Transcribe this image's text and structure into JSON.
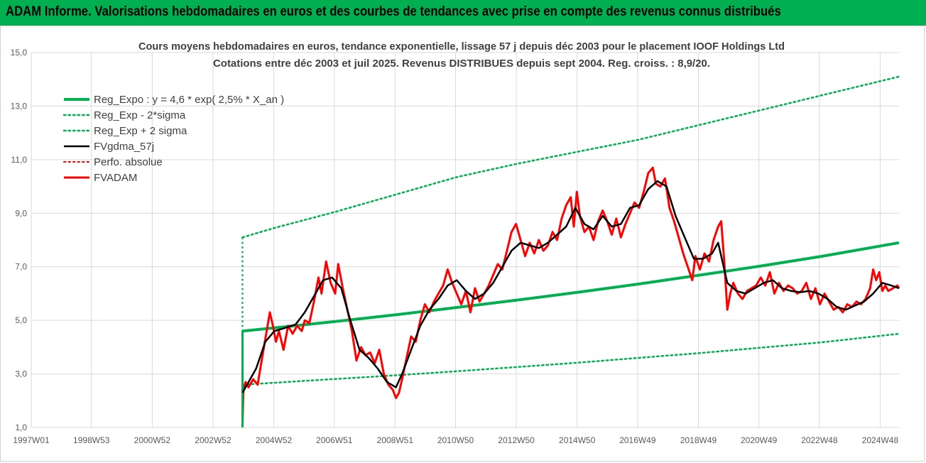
{
  "banner": {
    "title": "ADAM Informe. Valorisations hebdomadaires en euros et des courbes de tendances avec prise en compte des revenus connus distribués"
  },
  "chart_data": {
    "type": "line",
    "title": "Cours moyens hebdomadaires en euros, tendance exponentielle, lissage 57 j depuis déc 2003 pour le placement IOOF Holdings Ltd",
    "subtitle": "Cotations entre déc 2003 et juil 2025. Revenus DISTRIBUES depuis sept 2004. Reg. croiss. : 8,9/20.",
    "xlabel": "",
    "ylabel": "",
    "ylim": [
      1.0,
      15.0
    ],
    "xlim": [
      1997.0,
      2025.55
    ],
    "grid": true,
    "legend_position": "top-left",
    "y_ticks": [
      "1,0",
      "3,0",
      "5,0",
      "7,0",
      "9,0",
      "11,0",
      "13,0",
      "15,0"
    ],
    "x_ticks": [
      {
        "label": "1997W01",
        "x": 1997.0
      },
      {
        "label": "1998W53",
        "x": 1998.98
      },
      {
        "label": "2000W52",
        "x": 2000.98
      },
      {
        "label": "2002W52",
        "x": 2002.98
      },
      {
        "label": "2004W52",
        "x": 2004.98
      },
      {
        "label": "2006W51",
        "x": 2006.97
      },
      {
        "label": "2008W51",
        "x": 2008.97
      },
      {
        "label": "2010W50",
        "x": 2010.96
      },
      {
        "label": "2012W50",
        "x": 2012.96
      },
      {
        "label": "2014W50",
        "x": 2014.96
      },
      {
        "label": "2016W49",
        "x": 2016.95
      },
      {
        "label": "2018W49",
        "x": 2018.95
      },
      {
        "label": "2020W49",
        "x": 2020.94
      },
      {
        "label": "2022W48",
        "x": 2022.93
      },
      {
        "label": "2024W48",
        "x": 2024.93
      }
    ],
    "series": [
      {
        "name": "Reg_Expo : y = 4,6 * exp( 2,5% *  X_an )",
        "color": "#00b050",
        "dash": "solid",
        "width": 4,
        "x": [
          2003.95,
          2005,
          2007,
          2009,
          2011,
          2013,
          2015,
          2017,
          2019,
          2021,
          2023,
          2025.55
        ],
        "values": [
          4.6,
          4.72,
          4.96,
          5.21,
          5.48,
          5.76,
          6.05,
          6.36,
          6.69,
          7.03,
          7.39,
          7.9
        ]
      },
      {
        "name": "Reg_Exp - 2*sigma",
        "color": "#00b050",
        "dash": "dotted",
        "width": 2.5,
        "x": [
          2003.95,
          2005,
          2007,
          2009,
          2011,
          2013,
          2015,
          2017,
          2019,
          2021,
          2023,
          2025.55
        ],
        "values": [
          2.6,
          2.67,
          2.81,
          2.95,
          3.1,
          3.26,
          3.42,
          3.6,
          3.78,
          3.98,
          4.18,
          4.5
        ]
      },
      {
        "name": "Reg_Exp + 2 sigma",
        "color": "#00b050",
        "dash": "dotted",
        "width": 2.5,
        "x": [
          2003.95,
          2005,
          2007,
          2009,
          2011,
          2013,
          2015,
          2017,
          2019,
          2021,
          2023,
          2025.55
        ],
        "values": [
          8.1,
          8.45,
          9.05,
          9.7,
          10.35,
          10.85,
          11.3,
          11.75,
          12.3,
          12.85,
          13.4,
          14.1
        ]
      },
      {
        "name": "FVgdma_57j",
        "color": "#000000",
        "dash": "solid",
        "width": 2.5,
        "x": [
          2003.95,
          2004.1,
          2004.4,
          2004.7,
          2005.0,
          2005.3,
          2005.7,
          2006.0,
          2006.3,
          2006.6,
          2006.9,
          2007.2,
          2007.5,
          2007.8,
          2008.1,
          2008.4,
          2008.7,
          2009.0,
          2009.2,
          2009.5,
          2009.8,
          2010.1,
          2010.4,
          2010.7,
          2011.0,
          2011.3,
          2011.6,
          2011.9,
          2012.2,
          2012.5,
          2012.8,
          2013.1,
          2013.4,
          2013.7,
          2014.0,
          2014.3,
          2014.6,
          2014.9,
          2015.2,
          2015.5,
          2015.8,
          2016.1,
          2016.4,
          2016.7,
          2017.0,
          2017.3,
          2017.6,
          2017.9,
          2018.2,
          2018.5,
          2018.8,
          2019.1,
          2019.4,
          2019.6,
          2019.9,
          2020.2,
          2020.5,
          2020.8,
          2021.1,
          2021.4,
          2021.7,
          2022.0,
          2022.3,
          2022.6,
          2022.9,
          2023.2,
          2023.5,
          2023.8,
          2024.1,
          2024.4,
          2024.7,
          2025.0,
          2025.3,
          2025.55
        ],
        "values": [
          2.3,
          2.6,
          3.2,
          4.2,
          4.6,
          4.7,
          4.85,
          5.3,
          5.9,
          6.5,
          6.6,
          6.2,
          5.0,
          3.9,
          3.6,
          3.2,
          2.7,
          2.5,
          3.0,
          3.9,
          4.8,
          5.4,
          5.8,
          6.3,
          6.5,
          6.1,
          5.8,
          6.0,
          6.4,
          7.0,
          7.6,
          7.9,
          7.8,
          7.7,
          7.9,
          8.2,
          8.5,
          9.2,
          8.6,
          8.4,
          8.9,
          8.5,
          8.6,
          9.2,
          9.3,
          9.9,
          10.2,
          10.0,
          8.9,
          8.1,
          7.3,
          7.3,
          7.5,
          7.9,
          6.4,
          6.1,
          6.0,
          6.2,
          6.4,
          6.5,
          6.2,
          6.1,
          6.05,
          6.1,
          6.0,
          5.8,
          5.5,
          5.4,
          5.55,
          5.7,
          6.0,
          6.4,
          6.3,
          6.2
        ]
      },
      {
        "name": "Perfo. absolue",
        "color": "#ff0000",
        "dash": "dotted",
        "width": 2,
        "x": [],
        "values": []
      },
      {
        "name": "FVADAM",
        "color": "#ff0000",
        "dash": "solid",
        "width": 3,
        "x": [
          2003.95,
          2003.98,
          2004.05,
          2004.15,
          2004.3,
          2004.45,
          2004.55,
          2004.7,
          2004.85,
          2004.95,
          2005.05,
          2005.15,
          2005.3,
          2005.45,
          2005.6,
          2005.75,
          2005.9,
          2006.0,
          2006.15,
          2006.3,
          2006.45,
          2006.55,
          2006.7,
          2006.85,
          2007.0,
          2007.1,
          2007.25,
          2007.4,
          2007.55,
          2007.7,
          2007.85,
          2008.0,
          2008.15,
          2008.3,
          2008.45,
          2008.6,
          2008.75,
          2008.9,
          2009.0,
          2009.1,
          2009.2,
          2009.35,
          2009.5,
          2009.65,
          2009.8,
          2009.95,
          2010.1,
          2010.25,
          2010.4,
          2010.55,
          2010.7,
          2010.85,
          2011.0,
          2011.15,
          2011.3,
          2011.45,
          2011.6,
          2011.75,
          2011.9,
          2012.05,
          2012.2,
          2012.35,
          2012.5,
          2012.65,
          2012.8,
          2012.95,
          2013.1,
          2013.25,
          2013.4,
          2013.55,
          2013.7,
          2013.85,
          2014.0,
          2014.15,
          2014.3,
          2014.45,
          2014.6,
          2014.75,
          2014.85,
          2014.95,
          2015.05,
          2015.2,
          2015.35,
          2015.5,
          2015.65,
          2015.8,
          2015.95,
          2016.1,
          2016.25,
          2016.4,
          2016.55,
          2016.7,
          2016.85,
          2017.0,
          2017.15,
          2017.3,
          2017.45,
          2017.55,
          2017.7,
          2017.85,
          2018.0,
          2018.15,
          2018.3,
          2018.45,
          2018.6,
          2018.75,
          2018.85,
          2019.0,
          2019.15,
          2019.3,
          2019.45,
          2019.6,
          2019.7,
          2019.8,
          2019.9,
          2020.0,
          2020.1,
          2020.25,
          2020.4,
          2020.55,
          2020.7,
          2020.85,
          2021.0,
          2021.15,
          2021.3,
          2021.45,
          2021.6,
          2021.75,
          2021.9,
          2022.05,
          2022.2,
          2022.35,
          2022.5,
          2022.65,
          2022.8,
          2022.95,
          2023.1,
          2023.25,
          2023.4,
          2023.55,
          2023.7,
          2023.85,
          2024.0,
          2024.15,
          2024.3,
          2024.45,
          2024.6,
          2024.7,
          2024.8,
          2024.9,
          2025.0,
          2025.1,
          2025.2,
          2025.35,
          2025.5,
          2025.55
        ],
        "values": [
          1.1,
          2.4,
          2.7,
          2.5,
          2.8,
          2.6,
          3.3,
          4.3,
          5.3,
          4.8,
          4.2,
          4.6,
          3.9,
          4.8,
          4.5,
          4.8,
          4.6,
          5.0,
          4.9,
          5.7,
          6.6,
          6.0,
          7.2,
          6.4,
          6.0,
          7.1,
          6.2,
          5.4,
          4.6,
          3.5,
          4.0,
          3.7,
          3.8,
          3.4,
          3.9,
          3.0,
          2.6,
          2.4,
          2.1,
          2.3,
          2.8,
          3.6,
          4.4,
          4.2,
          5.0,
          5.6,
          5.3,
          5.7,
          6.0,
          6.3,
          6.9,
          6.4,
          6.0,
          5.6,
          6.1,
          5.3,
          6.2,
          5.7,
          6.0,
          6.3,
          6.7,
          7.1,
          6.9,
          7.6,
          8.3,
          8.6,
          8.0,
          7.4,
          7.9,
          7.5,
          8.0,
          7.6,
          7.8,
          8.3,
          8.0,
          8.8,
          9.3,
          9.6,
          8.5,
          9.8,
          8.9,
          8.3,
          8.5,
          8.0,
          8.7,
          9.1,
          8.7,
          8.2,
          8.8,
          8.1,
          8.6,
          9.0,
          9.4,
          9.2,
          9.8,
          10.5,
          10.7,
          10.1,
          10.0,
          10.3,
          9.2,
          8.7,
          8.1,
          7.5,
          7.0,
          6.5,
          7.4,
          6.9,
          7.5,
          7.2,
          8.0,
          8.5,
          8.7,
          7.2,
          5.4,
          6.0,
          6.4,
          6.0,
          5.8,
          6.1,
          6.2,
          6.3,
          6.6,
          6.3,
          6.8,
          6.0,
          6.4,
          6.1,
          6.3,
          6.2,
          6.0,
          6.1,
          6.4,
          5.8,
          6.2,
          5.6,
          6.0,
          5.7,
          5.4,
          5.5,
          5.3,
          5.6,
          5.5,
          5.7,
          5.6,
          5.8,
          6.2,
          6.9,
          6.5,
          6.8,
          6.1,
          6.3,
          6.1,
          6.2,
          6.3,
          6.2
        ]
      }
    ]
  }
}
